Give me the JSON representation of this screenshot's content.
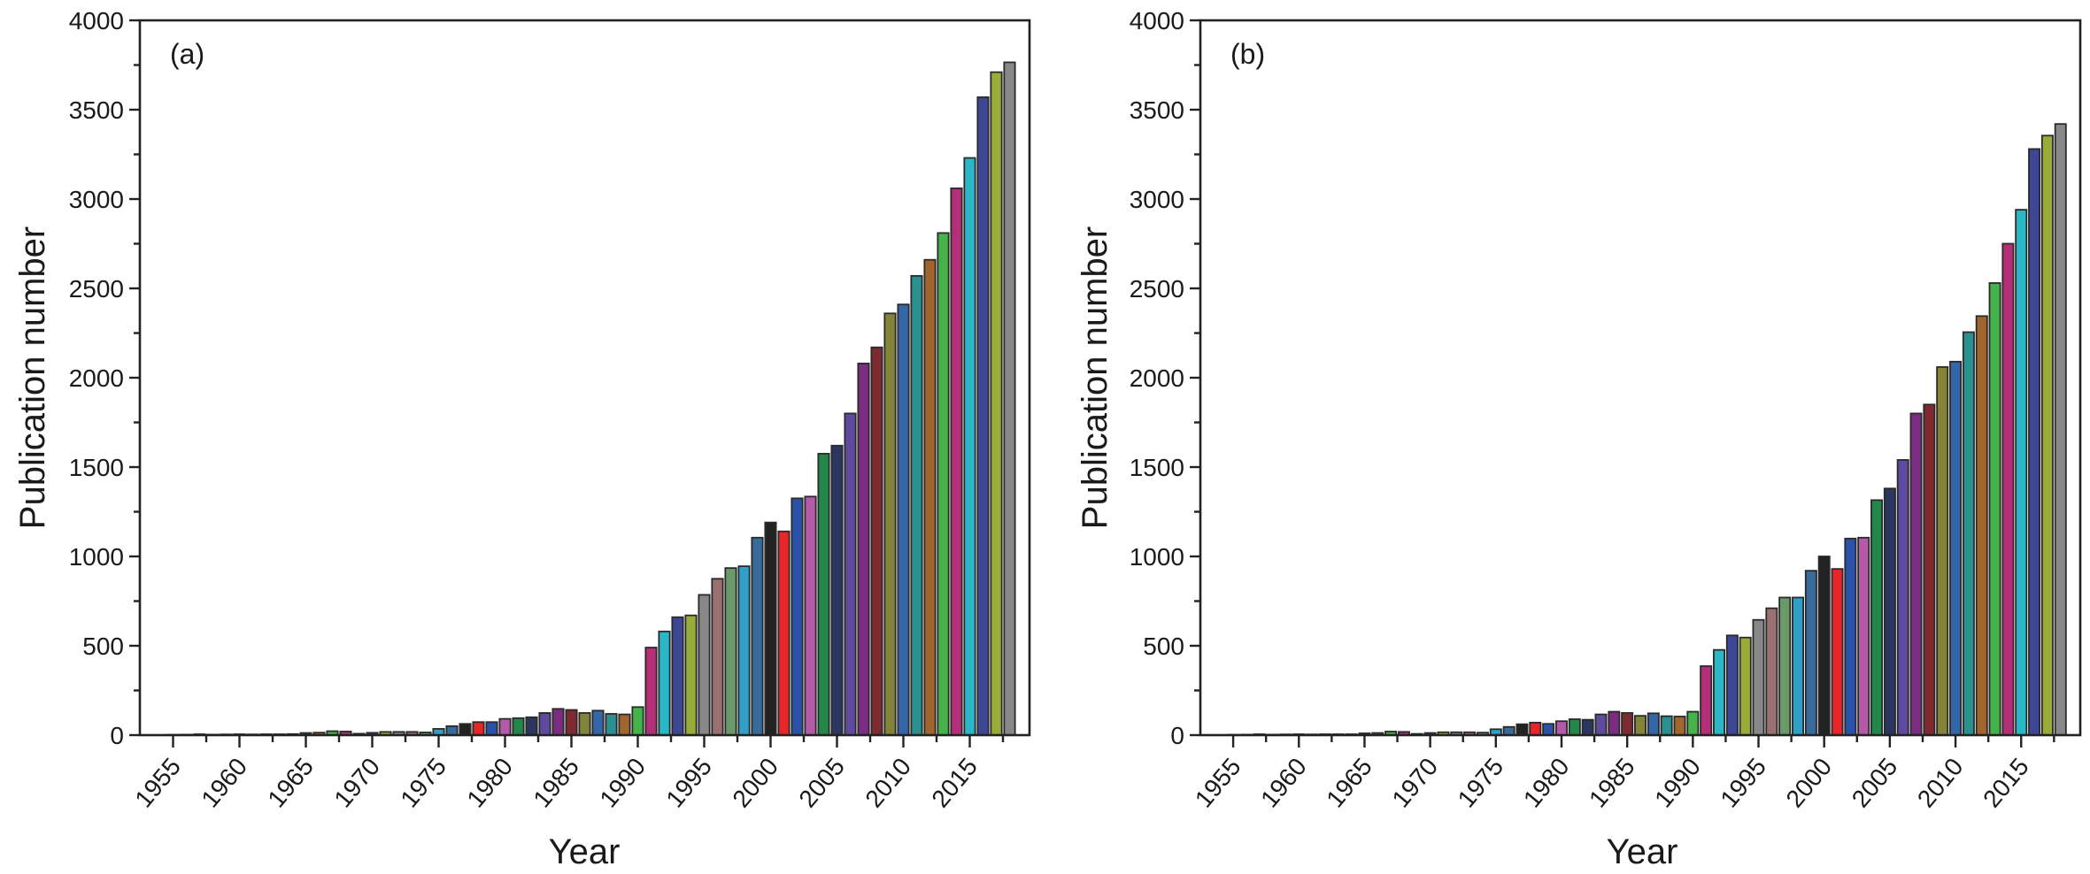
{
  "chart_data": [
    {
      "type": "bar",
      "panel_label": "(a)",
      "xlabel": "Year",
      "ylabel": "Publication number",
      "ylim": [
        0,
        4000
      ],
      "yticks": [
        0,
        500,
        1000,
        1500,
        2000,
        2500,
        3000,
        3500,
        4000
      ],
      "xticks": [
        1955,
        1960,
        1965,
        1970,
        1975,
        1980,
        1985,
        1990,
        1995,
        2000,
        2005,
        2010,
        2015
      ],
      "x": [
        1955,
        1956,
        1957,
        1958,
        1959,
        1960,
        1961,
        1962,
        1963,
        1964,
        1965,
        1966,
        1967,
        1968,
        1969,
        1970,
        1971,
        1972,
        1973,
        1974,
        1975,
        1976,
        1977,
        1978,
        1979,
        1980,
        1981,
        1982,
        1983,
        1984,
        1985,
        1986,
        1987,
        1988,
        1989,
        1990,
        1991,
        1992,
        1993,
        1994,
        1995,
        1996,
        1997,
        1998,
        1999,
        2000,
        2001,
        2002,
        2003,
        2004,
        2005,
        2006,
        2007,
        2008,
        2009,
        2010,
        2011,
        2012,
        2013,
        2014,
        2015,
        2016,
        2017,
        2018
      ],
      "values": [
        2,
        3,
        5,
        3,
        4,
        5,
        4,
        5,
        5,
        6,
        12,
        14,
        22,
        20,
        8,
        13,
        18,
        18,
        18,
        15,
        35,
        50,
        63,
        73,
        73,
        91,
        95,
        100,
        124,
        147,
        141,
        124,
        137,
        119,
        116,
        157,
        490,
        580,
        660,
        670,
        785,
        875,
        935,
        945,
        1105,
        1190,
        1140,
        1325,
        1335,
        1575,
        1620,
        1800,
        2080,
        2170,
        2360,
        2410,
        2570,
        2660,
        2810,
        3060,
        3230,
        3570,
        3710,
        3765
      ]
    },
    {
      "type": "bar",
      "panel_label": "(b)",
      "xlabel": "Year",
      "ylabel": "Publication number",
      "ylim": [
        0,
        4000
      ],
      "yticks": [
        0,
        500,
        1000,
        1500,
        2000,
        2500,
        3000,
        3500,
        4000
      ],
      "xticks": [
        1955,
        1960,
        1965,
        1970,
        1975,
        1980,
        1985,
        1990,
        1995,
        2000,
        2005,
        2010,
        2015
      ],
      "x": [
        1955,
        1956,
        1957,
        1958,
        1959,
        1960,
        1961,
        1962,
        1963,
        1964,
        1965,
        1966,
        1967,
        1968,
        1969,
        1970,
        1971,
        1972,
        1973,
        1974,
        1975,
        1976,
        1977,
        1978,
        1979,
        1980,
        1981,
        1982,
        1983,
        1984,
        1985,
        1986,
        1987,
        1988,
        1989,
        1990,
        1991,
        1992,
        1993,
        1994,
        1995,
        1996,
        1997,
        1998,
        1999,
        2000,
        2001,
        2002,
        2003,
        2004,
        2005,
        2006,
        2007,
        2008,
        2009,
        2010,
        2011,
        2012,
        2013,
        2014,
        2015,
        2016,
        2017,
        2018
      ],
      "values": [
        2,
        3,
        5,
        3,
        4,
        5,
        4,
        5,
        5,
        5,
        10,
        12,
        20,
        18,
        7,
        12,
        16,
        16,
        16,
        14,
        33,
        46,
        61,
        70,
        63,
        78,
        89,
        86,
        116,
        131,
        124,
        108,
        122,
        106,
        104,
        131,
        386,
        477,
        558,
        546,
        645,
        710,
        770,
        770,
        920,
        1000,
        930,
        1100,
        1105,
        1315,
        1380,
        1540,
        1800,
        1850,
        2060,
        2090,
        2255,
        2345,
        2530,
        2750,
        2940,
        3280,
        3355,
        3420
      ]
    }
  ],
  "palette": [
    "#222222",
    "#e8262a",
    "#2a52a8",
    "#b45aa8",
    "#22884a",
    "#2c3660",
    "#5e4a9e",
    "#7c2c82",
    "#7e2a30",
    "#848438",
    "#3466a8",
    "#2a9090",
    "#a0662e",
    "#44b44a",
    "#b42e78",
    "#2ab8c8",
    "#3e4696",
    "#98ac3a",
    "#888888",
    "#9a7070",
    "#6a9a6a",
    "#30a0c8",
    "#386a9a"
  ],
  "palette_start_year": 1977
}
